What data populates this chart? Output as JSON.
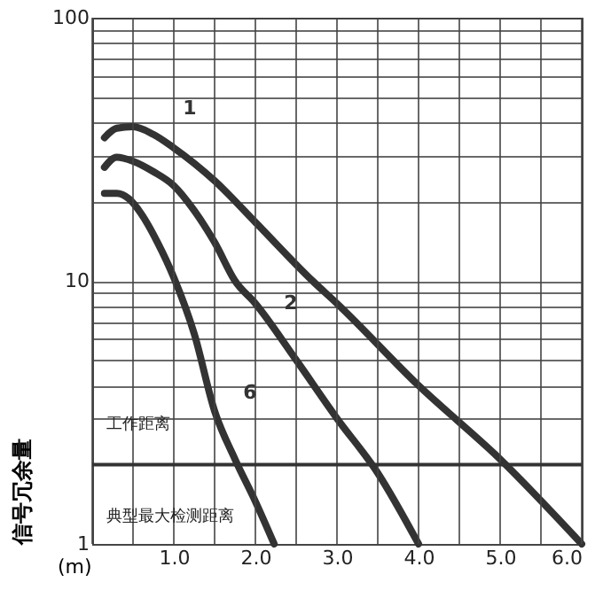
{
  "chart_data": {
    "type": "line",
    "xlabel": "(m)",
    "ylabel": "信号冗余量",
    "log": "y",
    "grid": true,
    "marker": "none",
    "line_style": "solid",
    "xlim": [
      0,
      6
    ],
    "ylim": [
      1,
      100
    ],
    "xticks": [
      {
        "value": 0,
        "label": null
      },
      {
        "value": 0.5,
        "label": null
      },
      {
        "value": 1,
        "label": "1.0"
      },
      {
        "value": 1.5,
        "label": null
      },
      {
        "value": 2,
        "label": "2.0"
      },
      {
        "value": 2.5,
        "label": null
      },
      {
        "value": 3,
        "label": "3.0"
      },
      {
        "value": 3.5,
        "label": null
      },
      {
        "value": 4,
        "label": "4.0"
      },
      {
        "value": 4.5,
        "label": null
      },
      {
        "value": 5,
        "label": "5.0"
      },
      {
        "value": 5.5,
        "label": null
      },
      {
        "value": 6,
        "label": "6.0"
      }
    ],
    "yticks": [
      1,
      {
        "value": 2,
        "label": null
      },
      {
        "value": 3,
        "label": null
      },
      {
        "value": 4,
        "label": null
      },
      {
        "value": 5,
        "label": null
      },
      {
        "value": 6,
        "label": null
      },
      {
        "value": 7,
        "label": null
      },
      {
        "value": 8,
        "label": null
      },
      {
        "value": 9,
        "label": null
      },
      10,
      {
        "value": 20,
        "label": null
      },
      {
        "value": 30,
        "label": null
      },
      {
        "value": 40,
        "label": null
      },
      {
        "value": 50,
        "label": null
      },
      {
        "value": 60,
        "label": null
      },
      {
        "value": 70,
        "label": null
      },
      {
        "value": 80,
        "label": null
      },
      {
        "value": 90,
        "label": null
      },
      100
    ],
    "ref_lines": [
      {
        "axis": "y",
        "value": 2,
        "color": "#333333"
      }
    ],
    "annotations": [
      "工作距离",
      "典型最大检测距离"
    ],
    "series": [
      {
        "name": "1",
        "color": "#333333",
        "x": [
          0.15,
          0.3,
          0.5,
          0.75,
          1.0,
          1.5,
          2.0,
          2.7,
          3.0,
          4.0,
          5.0,
          6.0
        ],
        "values": [
          35,
          38,
          38.5,
          36,
          32,
          24,
          16.7,
          10,
          8.2,
          4.0,
          2.1,
          1
        ]
      },
      {
        "name": "2",
        "color": "#333333",
        "x": [
          0.15,
          0.3,
          0.5,
          0.75,
          1.0,
          1.25,
          1.5,
          1.75,
          2.0,
          2.5,
          3.0,
          3.5,
          4.0
        ],
        "values": [
          27,
          29.5,
          28.5,
          26,
          23,
          18.5,
          14,
          10,
          8.2,
          5.0,
          3.0,
          1.86,
          1
        ]
      },
      {
        "name": "6",
        "color": "#333333",
        "x": [
          0.15,
          0.3,
          0.45,
          0.6,
          0.8,
          1.0,
          1.25,
          1.5,
          1.75,
          2.0,
          2.23
        ],
        "values": [
          21.5,
          21.5,
          20.5,
          18,
          14,
          10.3,
          6.3,
          3.2,
          2.1,
          1.45,
          1
        ]
      }
    ]
  }
}
